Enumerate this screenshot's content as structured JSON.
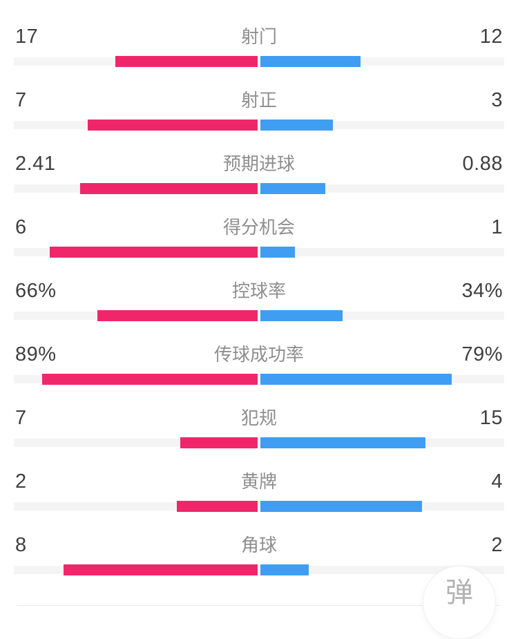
{
  "colors": {
    "home": "#f0266b",
    "away": "#3f9ef2",
    "track": "#f4f4f4",
    "value_text": "#3f3f3f",
    "label_text": "#8e8e8e",
    "divider": "#ebebeb",
    "danmaku_text": "#b3b3b3"
  },
  "stats": {
    "rows": [
      {
        "label": "射门",
        "left": "17",
        "right": "12"
      },
      {
        "label": "射正",
        "left": "7",
        "right": "3"
      },
      {
        "label": "预期进球",
        "left": "2.41",
        "right": "0.88"
      },
      {
        "label": "得分机会",
        "left": "6",
        "right": "1"
      },
      {
        "label": "控球率",
        "left": "66%",
        "right": "34%"
      },
      {
        "label": "传球成功率",
        "left": "89%",
        "right": "79%"
      },
      {
        "label": "犯规",
        "left": "7",
        "right": "15"
      },
      {
        "label": "黄牌",
        "left": "2",
        "right": "4"
      },
      {
        "label": "角球",
        "left": "8",
        "right": "2"
      }
    ]
  },
  "floating_button": {
    "label": "弹"
  },
  "chart_data": {
    "type": "bar",
    "subtype": "bidirectional-comparison",
    "orientation": "horizontal",
    "categories": [
      "射门",
      "射正",
      "预期进球",
      "得分机会",
      "控球率",
      "传球成功率",
      "犯规",
      "黄牌",
      "角球"
    ],
    "units": [
      "",
      "",
      "",
      "",
      "%",
      "%",
      "",
      "",
      ""
    ],
    "series": [
      {
        "name": "home",
        "color": "#f0266b",
        "side": "left",
        "values": [
          17,
          7,
          2.41,
          6,
          66,
          89,
          7,
          2,
          8
        ]
      },
      {
        "name": "away",
        "color": "#3f9ef2",
        "side": "right",
        "values": [
          12,
          3,
          0.88,
          1,
          34,
          79,
          15,
          4,
          2
        ]
      }
    ],
    "title": "",
    "xlabel": "",
    "ylabel": "",
    "legend": false,
    "grid": false,
    "scaling_rule": "percent rows use value/100 of half-width; count rows use value/(left+right) of half-width"
  }
}
